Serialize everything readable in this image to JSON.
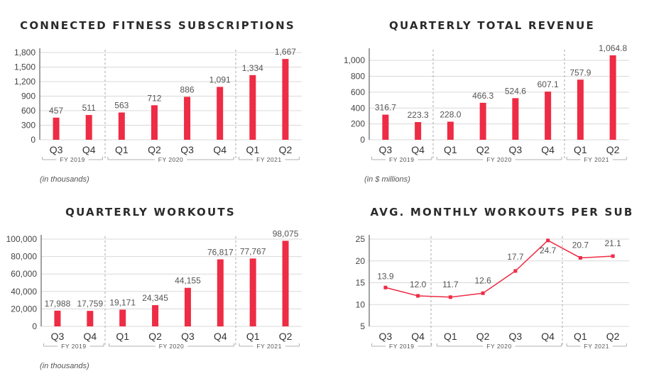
{
  "colors": {
    "bar": "#ee2c45",
    "axis": "#444444",
    "grid": "#d9d9d9",
    "divider": "#aaaaaa"
  },
  "chart_data": [
    {
      "type": "bar",
      "title": "CONNECTED FITNESS SUBSCRIPTIONS",
      "categories": [
        "Q3",
        "Q4",
        "Q1",
        "Q2",
        "Q3",
        "Q4",
        "Q1",
        "Q2"
      ],
      "values": [
        457,
        511,
        563,
        712,
        886,
        1091,
        1334,
        1667
      ],
      "value_labels": [
        "457",
        "511",
        "563",
        "712",
        "886",
        "1,091",
        "1,334",
        "1,667"
      ],
      "ylim": [
        0,
        1800
      ],
      "yticks": [
        0,
        300,
        600,
        900,
        1200,
        1500,
        1800
      ],
      "ytick_labels": [
        "0",
        "300",
        "600",
        "900",
        "1,200",
        "1,500",
        "1,800"
      ],
      "groups": [
        {
          "label": "FY 2019",
          "start": 0,
          "end": 1
        },
        {
          "label": "FY 2020",
          "start": 2,
          "end": 5
        },
        {
          "label": "FY 2021",
          "start": 6,
          "end": 7
        }
      ],
      "note": "(in thousands)",
      "grid": true
    },
    {
      "type": "bar",
      "title": "QUARTERLY TOTAL REVENUE",
      "categories": [
        "Q3",
        "Q4",
        "Q1",
        "Q2",
        "Q3",
        "Q4",
        "Q1",
        "Q2"
      ],
      "values": [
        316.7,
        223.3,
        228.0,
        466.3,
        524.6,
        607.1,
        757.9,
        1064.8
      ],
      "value_labels": [
        "316.7",
        "223.3",
        "228.0",
        "466.3",
        "524.6",
        "607.1",
        "757.9",
        "1,064.8"
      ],
      "ylim": [
        0,
        1100
      ],
      "yticks": [
        0,
        200,
        400,
        600,
        800,
        1000
      ],
      "ytick_labels": [
        "0",
        "200",
        "400",
        "600",
        "800",
        "1,000"
      ],
      "groups": [
        {
          "label": "FY 2019",
          "start": 0,
          "end": 1
        },
        {
          "label": "FY 2020",
          "start": 2,
          "end": 5
        },
        {
          "label": "FY 2021",
          "start": 6,
          "end": 7
        }
      ],
      "note": "(in $ millions)",
      "grid": true
    },
    {
      "type": "bar",
      "title": "QUARTERLY WORKOUTS",
      "categories": [
        "Q3",
        "Q4",
        "Q1",
        "Q2",
        "Q3",
        "Q4",
        "Q1",
        "Q2"
      ],
      "values": [
        17988,
        17759,
        19171,
        24345,
        44155,
        76817,
        77767,
        98075
      ],
      "value_labels": [
        "17,988",
        "17,759",
        "19,171",
        "24,345",
        "44,155",
        "76,817",
        "77,767",
        "98,075"
      ],
      "ylim": [
        0,
        100000
      ],
      "yticks": [
        0,
        20000,
        40000,
        60000,
        80000,
        100000
      ],
      "ytick_labels": [
        "0",
        "20,000",
        "40,000",
        "60,000",
        "80,000",
        "100,000"
      ],
      "groups": [
        {
          "label": "FY 2019",
          "start": 0,
          "end": 1
        },
        {
          "label": "FY 2020",
          "start": 2,
          "end": 5
        },
        {
          "label": "FY 2021",
          "start": 6,
          "end": 7
        }
      ],
      "note": "(in thousands)",
      "grid": true
    },
    {
      "type": "line",
      "title": "AVG. MONTHLY WORKOUTS PER SUB",
      "categories": [
        "Q3",
        "Q4",
        "Q1",
        "Q2",
        "Q3",
        "Q4",
        "Q1",
        "Q2"
      ],
      "values": [
        13.9,
        12.0,
        11.7,
        12.6,
        17.7,
        24.7,
        20.7,
        21.1
      ],
      "value_labels": [
        "13.9",
        "12.0",
        "11.7",
        "12.6",
        "17.7",
        "24.7",
        "20.7",
        "21.1"
      ],
      "ylim": [
        5,
        25
      ],
      "yticks": [
        5,
        10,
        15,
        20,
        25
      ],
      "ytick_labels": [
        "5",
        "10",
        "15",
        "20",
        "25"
      ],
      "groups": [
        {
          "label": "FY 2019",
          "start": 0,
          "end": 1
        },
        {
          "label": "FY 2020",
          "start": 2,
          "end": 5
        },
        {
          "label": "FY 2021",
          "start": 6,
          "end": 7
        }
      ],
      "note": "",
      "grid": true
    }
  ]
}
